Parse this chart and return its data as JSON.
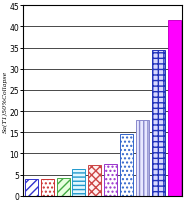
{
  "bar_configs": [
    {
      "value": 4.0,
      "facecolor": "#ffffff",
      "edgecolor": "#3333cc",
      "hatch": "////"
    },
    {
      "value": 4.0,
      "facecolor": "#ffffff",
      "edgecolor": "#cc3333",
      "hatch": "...."
    },
    {
      "value": 4.2,
      "facecolor": "#e8ffe0",
      "edgecolor": "#44aa44",
      "hatch": "////"
    },
    {
      "value": 6.2,
      "facecolor": "#e0f8ff",
      "edgecolor": "#2299cc",
      "hatch": "----"
    },
    {
      "value": 7.2,
      "facecolor": "#fff0f0",
      "edgecolor": "#cc4444",
      "hatch": "xxxx"
    },
    {
      "value": 7.5,
      "facecolor": "#ffffff",
      "edgecolor": "#9933cc",
      "hatch": "...."
    },
    {
      "value": 14.5,
      "facecolor": "#ffffff",
      "edgecolor": "#3366cc",
      "hatch": "...."
    },
    {
      "value": 18.0,
      "facecolor": "#e8e8ff",
      "edgecolor": "#8888cc",
      "hatch": "||||"
    },
    {
      "value": 34.5,
      "facecolor": "#d8d8ff",
      "edgecolor": "#2233bb",
      "hatch": "+++"
    },
    {
      "value": 41.5,
      "facecolor": "#ff00ff",
      "edgecolor": "#cc00cc",
      "hatch": ""
    }
  ],
  "ylim": [
    0,
    45
  ],
  "yticks": [
    0,
    5,
    10,
    15,
    20,
    25,
    30,
    35,
    40,
    45
  ],
  "ylabel": "Sa(T1)50%Collapse",
  "background": "#ffffff"
}
